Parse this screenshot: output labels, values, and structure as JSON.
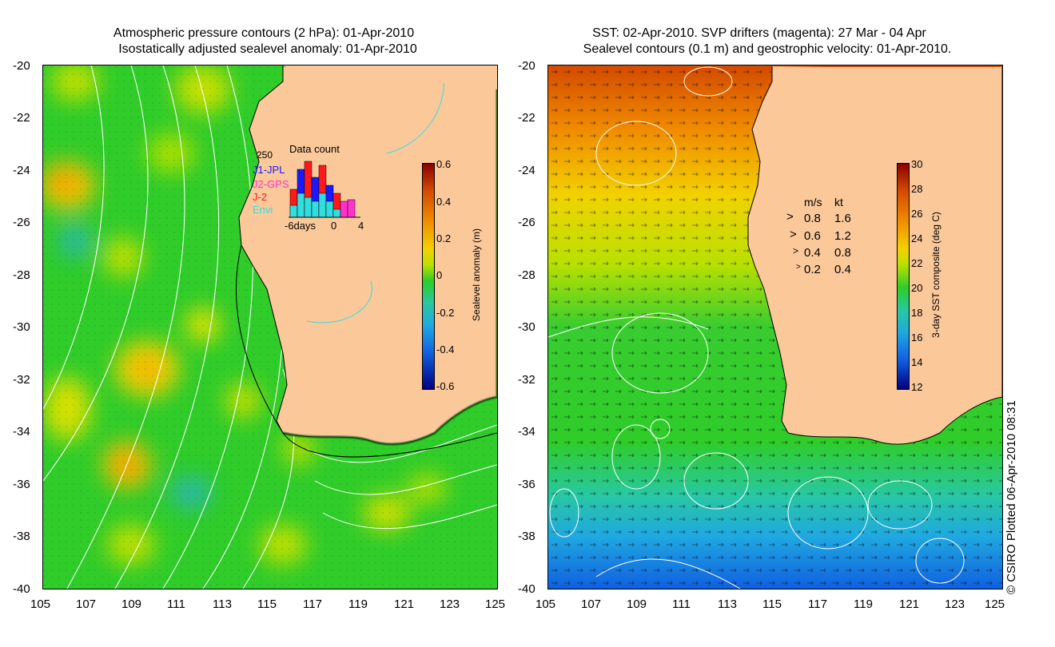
{
  "left_panel": {
    "title_line1": "Atmospheric pressure contours (2 hPa): 01-Apr-2010",
    "title_line2": "Isostatically adjusted sealevel anomaly: 01-Apr-2010",
    "colorbar_label": "Sealevel anomaly (m)",
    "colorbar_ticks": [
      "0.6",
      "0.4",
      "0.2",
      "0",
      "-0.2",
      "-0.4",
      "-0.6"
    ],
    "inset": {
      "title": "Data count",
      "max_label": "250",
      "legend": [
        {
          "label": "J1-JPL",
          "color": "#1a1aff"
        },
        {
          "label": "J2-GPS",
          "color": "#ff33cc"
        },
        {
          "label": "J-2",
          "color": "#ff1a1a"
        },
        {
          "label": "Envi",
          "color": "#33dddd"
        }
      ],
      "x_labels": [
        "-6days",
        "0",
        "4"
      ]
    }
  },
  "right_panel": {
    "title_line1": "SST: 02-Apr-2010. SVP drifters (magenta): 27 Mar - 04 Apr",
    "title_line2": "Sealevel contours (0.1 m) and geostrophic velocity: 01-Apr-2010.",
    "colorbar_label": "3-day SST composite (deg C)",
    "colorbar_ticks": [
      "30",
      "28",
      "26",
      "24",
      "22",
      "20",
      "18",
      "16",
      "14",
      "12"
    ],
    "velocity_legend": {
      "header_ms": "m/s",
      "header_kt": "kt",
      "rows": [
        {
          "ms": "0.8",
          "kt": "1.6"
        },
        {
          "ms": "0.6",
          "kt": "1.2"
        },
        {
          "ms": "0.4",
          "kt": "0.8"
        },
        {
          "ms": "0.2",
          "kt": "0.4"
        }
      ]
    }
  },
  "axes": {
    "y_ticks": [
      "-20",
      "-22",
      "-24",
      "-26",
      "-28",
      "-30",
      "-32",
      "-34",
      "-36",
      "-38",
      "-40"
    ],
    "x_ticks": [
      "105",
      "107",
      "109",
      "111",
      "113",
      "115",
      "117",
      "119",
      "121",
      "123",
      "125"
    ]
  },
  "credit": "© CSIRO Plotted 06-Apr-2010 08:31",
  "colors": {
    "land": "#fbc89a",
    "ocean_green": "#2fcc2a",
    "contour": "#ffffff",
    "coast": "#000000"
  }
}
